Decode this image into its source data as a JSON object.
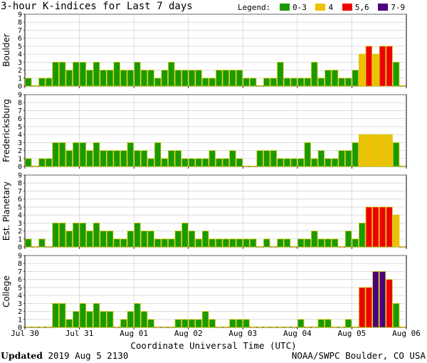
{
  "title": "3-hour K-indices for Last 7 days",
  "legend": {
    "label": "Legend:",
    "items": [
      {
        "label": "0-3",
        "color": "#1a9a00"
      },
      {
        "label": "4",
        "color": "#f0c000"
      },
      {
        "label": "5,6",
        "color": "#f00000"
      },
      {
        "label": "7-9",
        "color": "#4b0080"
      }
    ]
  },
  "xlabel": "Coordinate Universal Time (UTC)",
  "footer": {
    "updated_label": "Updated",
    "updated_value": "2019 Aug  5 2130",
    "credit": "NOAA/SWPC Boulder, CO USA"
  },
  "chart_data": [
    {
      "type": "bar",
      "station": "Boulder",
      "ylim": [
        0,
        9
      ],
      "yticks": [
        0,
        1,
        2,
        3,
        4,
        5,
        6,
        7,
        8,
        9
      ],
      "xticks": [
        "Jul 30",
        "Jul 31",
        "Aug 01",
        "Aug 02",
        "Aug 03",
        "Aug 04",
        "Aug 05",
        "Aug 06"
      ],
      "values": [
        1,
        0,
        1,
        1,
        3,
        3,
        2,
        3,
        3,
        2,
        3,
        2,
        2,
        3,
        2,
        2,
        3,
        2,
        2,
        1,
        2,
        3,
        2,
        2,
        2,
        2,
        1,
        1,
        2,
        2,
        2,
        2,
        1,
        1,
        0,
        1,
        1,
        3,
        1,
        1,
        1,
        1,
        3,
        1,
        2,
        2,
        1,
        1,
        2,
        4,
        5,
        4,
        5,
        5,
        3,
        0
      ]
    },
    {
      "type": "bar",
      "station": "Fredericksburg",
      "ylim": [
        0,
        9
      ],
      "yticks": [
        0,
        1,
        2,
        3,
        4,
        5,
        6,
        7,
        8,
        9
      ],
      "xticks": [
        "Jul 30",
        "Jul 31",
        "Aug 01",
        "Aug 02",
        "Aug 03",
        "Aug 04",
        "Aug 05",
        "Aug 06"
      ],
      "values": [
        1,
        0,
        1,
        1,
        3,
        3,
        2,
        3,
        3,
        2,
        3,
        2,
        2,
        2,
        2,
        3,
        2,
        2,
        1,
        3,
        1,
        2,
        2,
        1,
        1,
        1,
        1,
        2,
        1,
        1,
        2,
        1,
        0,
        0,
        2,
        2,
        2,
        1,
        1,
        1,
        1,
        3,
        1,
        2,
        1,
        1,
        2,
        2,
        3,
        4,
        4,
        4,
        4,
        4,
        3,
        0
      ]
    },
    {
      "type": "bar",
      "station": "Est. Planetary",
      "ylim": [
        0,
        9
      ],
      "yticks": [
        0,
        1,
        2,
        3,
        4,
        5,
        6,
        7,
        8,
        9
      ],
      "xticks": [
        "Jul 30",
        "Jul 31",
        "Aug 01",
        "Aug 02",
        "Aug 03",
        "Aug 04",
        "Aug 05",
        "Aug 06"
      ],
      "values": [
        1,
        0,
        1,
        0,
        3,
        3,
        2,
        3,
        3,
        2,
        3,
        2,
        2,
        1,
        1,
        2,
        3,
        2,
        2,
        1,
        1,
        1,
        2,
        3,
        2,
        1,
        2,
        1,
        1,
        1,
        1,
        1,
        1,
        1,
        0,
        1,
        0,
        1,
        1,
        0,
        1,
        1,
        2,
        1,
        1,
        1,
        0,
        2,
        1,
        3,
        5,
        5,
        5,
        5,
        4,
        0
      ]
    },
    {
      "type": "bar",
      "station": "College",
      "ylim": [
        0,
        9
      ],
      "yticks": [
        0,
        1,
        2,
        3,
        4,
        5,
        6,
        7,
        8,
        9
      ],
      "xticks": [
        "Jul 30",
        "Jul 31",
        "Aug 01",
        "Aug 02",
        "Aug 03",
        "Aug 04",
        "Aug 05",
        "Aug 06"
      ],
      "values": [
        0,
        0,
        0,
        0,
        3,
        3,
        1,
        2,
        3,
        2,
        3,
        2,
        2,
        0,
        1,
        2,
        3,
        2,
        1,
        0,
        0,
        0,
        1,
        1,
        1,
        1,
        2,
        1,
        0,
        0,
        1,
        1,
        1,
        0,
        0,
        0,
        0,
        0,
        0,
        0,
        1,
        0,
        0,
        1,
        1,
        0,
        0,
        1,
        0,
        5,
        5,
        7,
        7,
        6,
        3,
        0
      ]
    }
  ]
}
